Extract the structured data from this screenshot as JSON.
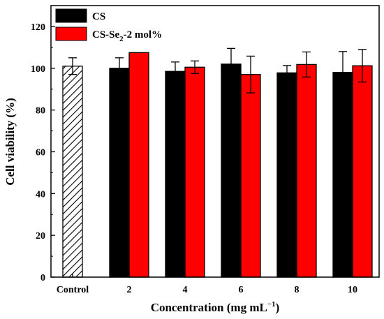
{
  "chart_data": {
    "type": "bar",
    "xlabel": "Concentration (mg mL",
    "xlabel_sup": "−1",
    "xlabel_end": ")",
    "ylabel": "Cell viability (%)",
    "ylim": [
      0,
      130
    ],
    "yticks": [
      0,
      20,
      40,
      60,
      80,
      100,
      120
    ],
    "control": {
      "label": "Control",
      "value": 101,
      "error": 4,
      "pattern": "hatched"
    },
    "categories": [
      "2",
      "4",
      "6",
      "8",
      "10"
    ],
    "series": [
      {
        "name": "CS",
        "color": "#000000",
        "values": [
          100,
          98.5,
          102,
          97.8,
          98
        ],
        "errors": [
          5,
          4.5,
          7.5,
          3.5,
          10
        ]
      },
      {
        "name": "CS-Se",
        "name_sub": "2",
        "name_end": "-2 mol%",
        "color": "#ff0000",
        "values": [
          107.5,
          100.5,
          97,
          101.8,
          101.2
        ],
        "errors": [
          0,
          3,
          8.8,
          6,
          7.8
        ]
      }
    ],
    "legend": "top-left",
    "grid": false
  }
}
